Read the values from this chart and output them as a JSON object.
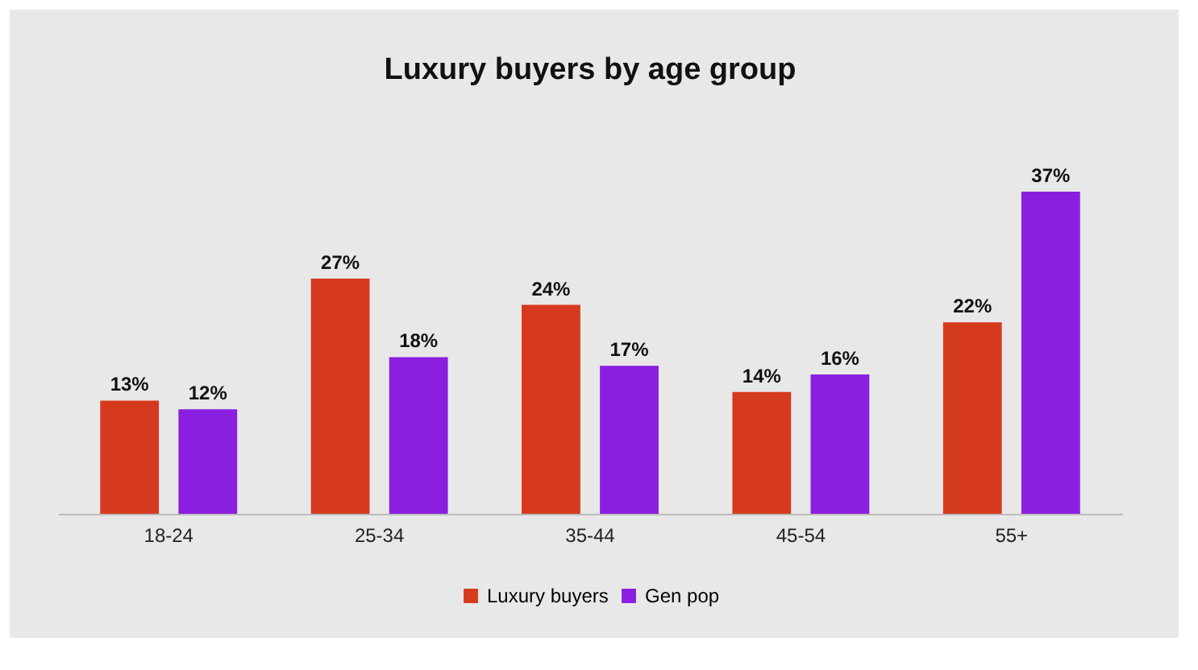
{
  "chart_data": {
    "type": "bar",
    "title": "Luxury buyers by age group",
    "categories": [
      "18-24",
      "25-34",
      "35-44",
      "45-54",
      "55+"
    ],
    "series": [
      {
        "name": "Luxury buyers",
        "color": "#d53a1f",
        "values": [
          13,
          27,
          24,
          14,
          22
        ],
        "value_labels": [
          "13%",
          "27%",
          "24%",
          "14%",
          "22%"
        ]
      },
      {
        "name": "Gen pop",
        "color": "#8a1fe0",
        "values": [
          12,
          18,
          17,
          16,
          37
        ],
        "value_labels": [
          "12%",
          "18%",
          "17%",
          "16%",
          "37%"
        ]
      }
    ],
    "legend": "bottom",
    "grid": false,
    "tick_labels": "x"
  }
}
